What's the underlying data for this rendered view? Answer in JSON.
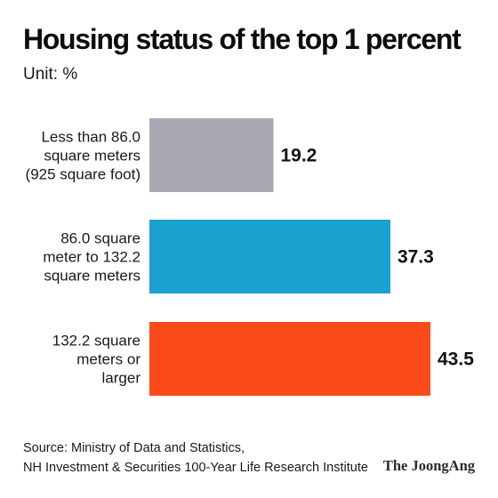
{
  "title": "Housing status of the top 1 percent",
  "unit": "Unit: %",
  "source": {
    "line1": "Source: Ministry of Data and Statistics,",
    "line2": "NH Investment & Securities 100-Year Life Research Institute"
  },
  "brand": "The JoongAng",
  "colors": {
    "bar_small": "#a8a7b2",
    "bar_medium": "#1aa1cf",
    "bar_large": "#fb4b1b"
  },
  "chart_data": {
    "type": "bar",
    "orientation": "horizontal",
    "title": "Housing status of the top 1 percent",
    "unit": "%",
    "categories": [
      [
        "Less than 86.0",
        "square meters",
        "(925 square foot)"
      ],
      [
        "86.0 square",
        "meter to 132.2",
        "square meters"
      ],
      [
        "132.2 square",
        "meters or",
        "larger"
      ]
    ],
    "values": [
      19.2,
      37.3,
      43.5
    ],
    "value_labels": [
      "19.2",
      "37.3",
      "43.5"
    ],
    "xlim": [
      0,
      43.5
    ],
    "grid": false,
    "legend": "none"
  }
}
